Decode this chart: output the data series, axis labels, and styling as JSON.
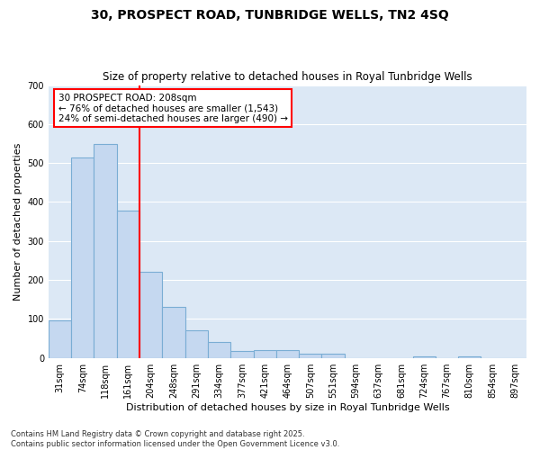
{
  "title": "30, PROSPECT ROAD, TUNBRIDGE WELLS, TN2 4SQ",
  "subtitle": "Size of property relative to detached houses in Royal Tunbridge Wells",
  "xlabel": "Distribution of detached houses by size in Royal Tunbridge Wells",
  "ylabel": "Number of detached properties",
  "categories": [
    "31sqm",
    "74sqm",
    "118sqm",
    "161sqm",
    "204sqm",
    "248sqm",
    "291sqm",
    "334sqm",
    "377sqm",
    "421sqm",
    "464sqm",
    "507sqm",
    "551sqm",
    "594sqm",
    "637sqm",
    "681sqm",
    "724sqm",
    "767sqm",
    "810sqm",
    "854sqm",
    "897sqm"
  ],
  "values": [
    97,
    515,
    548,
    378,
    220,
    130,
    70,
    40,
    18,
    21,
    21,
    11,
    12,
    0,
    0,
    0,
    4,
    0,
    4,
    0,
    0
  ],
  "bar_color": "#c5d8f0",
  "bar_edge_color": "#7aadd4",
  "vline_color": "red",
  "vline_x_index": 4,
  "annotation_text": "30 PROSPECT ROAD: 208sqm\n← 76% of detached houses are smaller (1,543)\n24% of semi-detached houses are larger (490) →",
  "annotation_box_color": "white",
  "annotation_box_edge": "red",
  "ylim": [
    0,
    700
  ],
  "yticks": [
    0,
    100,
    200,
    300,
    400,
    500,
    600,
    700
  ],
  "fig_bg_color": "#ffffff",
  "plot_bg_color": "#dce8f5",
  "grid_color": "#ffffff",
  "footer": "Contains HM Land Registry data © Crown copyright and database right 2025.\nContains public sector information licensed under the Open Government Licence v3.0.",
  "title_fontsize": 10,
  "subtitle_fontsize": 8.5,
  "xlabel_fontsize": 8,
  "ylabel_fontsize": 8,
  "tick_fontsize": 7,
  "annotation_fontsize": 7.5,
  "footer_fontsize": 6
}
